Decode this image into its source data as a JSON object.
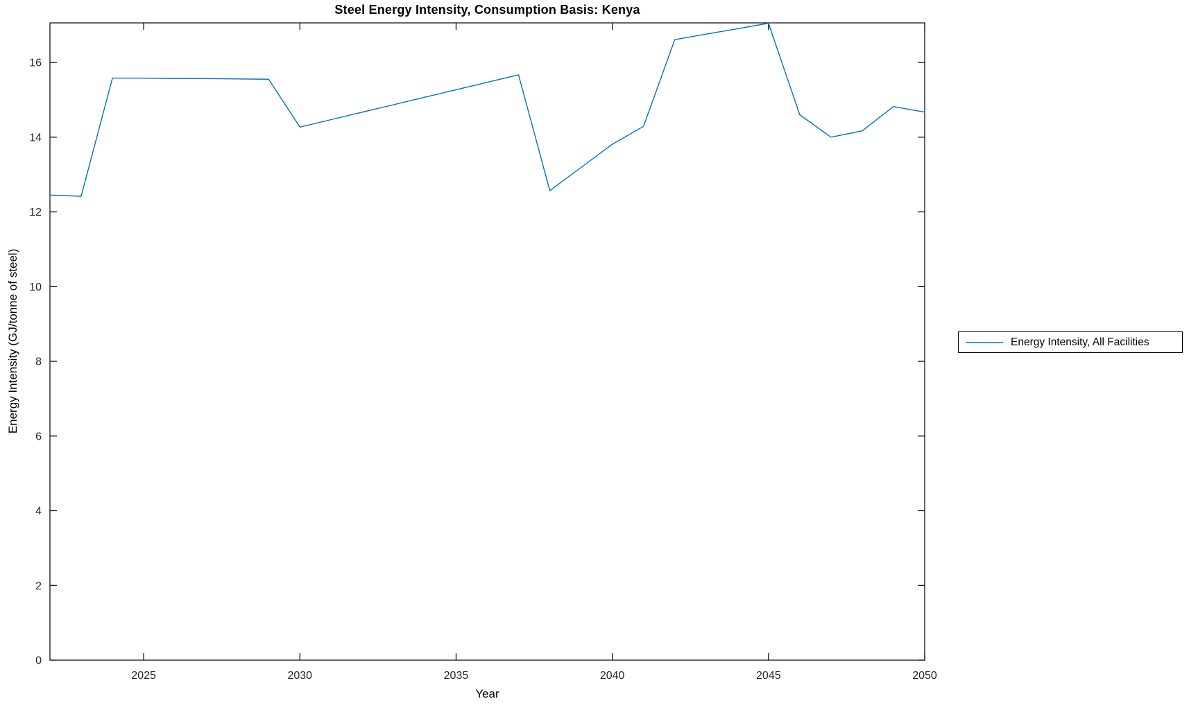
{
  "chart_data": {
    "type": "line",
    "title": "Steel Energy Intensity, Consumption Basis: Kenya",
    "xlabel": "Year",
    "ylabel": "Energy Intensity (GJ/tonne of steel)",
    "xlim": [
      2022,
      2050
    ],
    "ylim": [
      0,
      17.06
    ],
    "xticks": [
      2025,
      2030,
      2035,
      2040,
      2045,
      2050
    ],
    "yticks": [
      0,
      2,
      4,
      6,
      8,
      10,
      12,
      14,
      16
    ],
    "grid": false,
    "legend_position": "right-outside",
    "x": [
      2022,
      2023,
      2024,
      2025,
      2026,
      2027,
      2028,
      2029,
      2030,
      2031,
      2032,
      2033,
      2034,
      2035,
      2036,
      2037,
      2038,
      2039,
      2040,
      2041,
      2042,
      2043,
      2044,
      2045,
      2046,
      2047,
      2048,
      2049,
      2050
    ],
    "series": [
      {
        "name": "Energy Intensity, All Facilities",
        "color": "#0072BD",
        "values": [
          12.45,
          12.42,
          15.58,
          15.58,
          15.57,
          15.57,
          15.56,
          15.55,
          14.27,
          14.47,
          14.67,
          14.87,
          15.07,
          15.27,
          15.47,
          15.67,
          12.57,
          13.19,
          13.81,
          14.29,
          16.61,
          16.76,
          16.9,
          17.05,
          14.6,
          14.0,
          14.17,
          14.82,
          14.67
        ]
      }
    ]
  },
  "colors": {
    "axis": "#000000",
    "background": "#ffffff",
    "tick_label": "#262626"
  }
}
